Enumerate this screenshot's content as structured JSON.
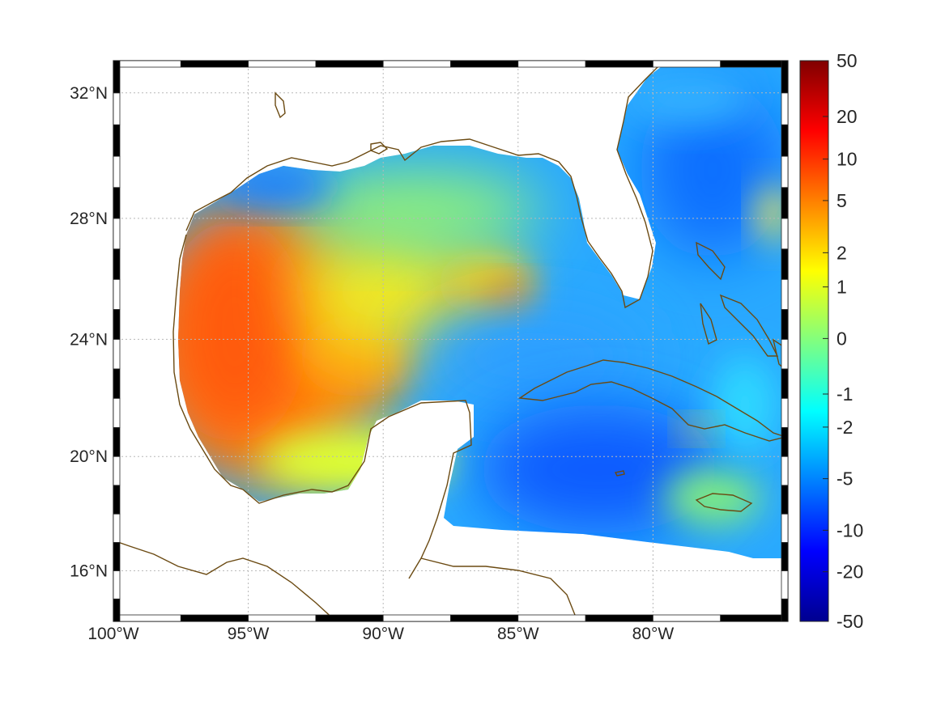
{
  "map": {
    "projection": "mercator",
    "lon_range": [
      -100,
      -75
    ],
    "lat_range": [
      14.2,
      33
    ],
    "land_color": "#ffffff",
    "coastline_color": "#6b4a12",
    "grid": true,
    "lon_ticks": [
      {
        "value": -100,
        "label": "100°W"
      },
      {
        "value": -95,
        "label": "95°W"
      },
      {
        "value": -90,
        "label": "90°W"
      },
      {
        "value": -85,
        "label": "85°W"
      },
      {
        "value": -80,
        "label": "80°W"
      }
    ],
    "lat_ticks": [
      {
        "value": 32,
        "label": "32°N"
      },
      {
        "value": 28,
        "label": "28°N"
      },
      {
        "value": 24,
        "label": "24°N"
      },
      {
        "value": 20,
        "label": "20°N"
      },
      {
        "value": 16,
        "label": "16°N"
      }
    ]
  },
  "colorbar": {
    "colormap": "jet",
    "position": "right",
    "tick_labels": [
      "50",
      "20",
      "10",
      "5",
      "2",
      "1",
      "0",
      "-1",
      "-2",
      "-5",
      "-10",
      "-20",
      "-50"
    ],
    "colors": [
      "#00008f",
      "#0000ff",
      "#0080ff",
      "#00ffff",
      "#80ff80",
      "#ffff00",
      "#ff8000",
      "#ff0000",
      "#800000"
    ]
  },
  "field_features": [
    {
      "name": "western-gulf-warm-anomaly",
      "lon": -96.5,
      "lat": 23.0,
      "value": 6
    },
    {
      "name": "campeche-warm-anomaly",
      "lon": -94.5,
      "lat": 20.5,
      "value": 5
    },
    {
      "name": "central-gulf-warm-anomaly",
      "lon": -89.5,
      "lat": 23.5,
      "value": 4
    },
    {
      "name": "loop-current-warm-patch",
      "lon": -85.2,
      "lat": 25.6,
      "value": 3
    },
    {
      "name": "north-gulf-cool-shelf",
      "lon": -93.5,
      "lat": 29.2,
      "value": -4
    },
    {
      "name": "caribbean-cool-region",
      "lon": -83.0,
      "lat": 18.8,
      "value": -7
    },
    {
      "name": "atlantic-cool-region",
      "lon": -77.5,
      "lat": 30.5,
      "value": -5
    },
    {
      "name": "jamaica-warm-patch",
      "lon": -77.5,
      "lat": 18.2,
      "value": 0
    }
  ]
}
